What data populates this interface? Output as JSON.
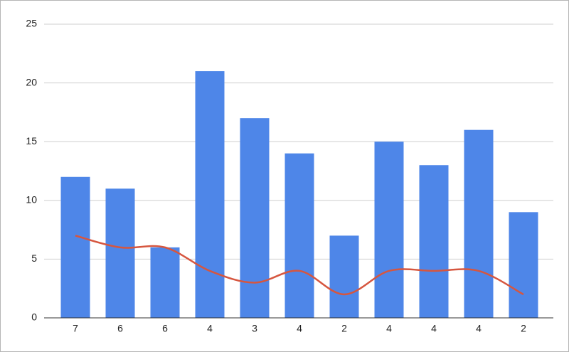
{
  "chart_data": {
    "type": "bar",
    "categories": [
      "7",
      "6",
      "6",
      "4",
      "3",
      "4",
      "2",
      "4",
      "4",
      "4",
      "2"
    ],
    "series": [
      {
        "type": "bar",
        "color": "#4e86e8",
        "values": [
          12,
          11,
          6,
          21,
          17,
          14,
          7,
          15,
          13,
          16,
          9
        ]
      },
      {
        "type": "line",
        "color": "#d6563f",
        "smooth": true,
        "values": [
          7,
          6,
          6,
          4,
          3,
          4,
          2,
          4,
          4,
          4,
          2
        ]
      }
    ],
    "ylim": [
      0,
      25
    ],
    "yticks": [
      0,
      5,
      10,
      15,
      20,
      25
    ],
    "grid": true
  }
}
